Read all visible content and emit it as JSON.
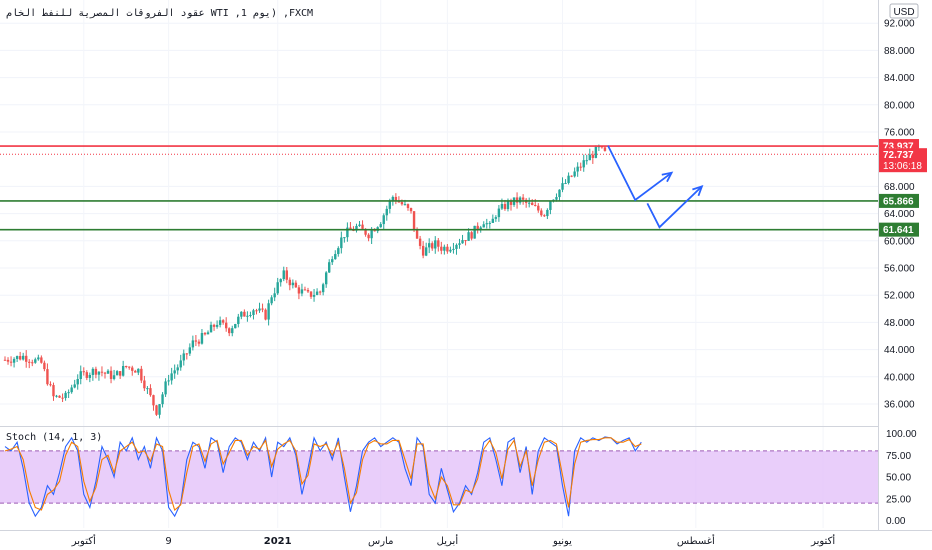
{
  "chart_data": [
    {
      "type": "candlestick",
      "title": "عقود الفروقات المصرية للنفط الخام  WTI  ,يوم  1) ,FXCM",
      "currency": "USD",
      "yticks": [
        "92.000",
        "88.000",
        "84.000",
        "80.000",
        "76.000",
        "68.000",
        "64.000",
        "60.000",
        "56.000",
        "52.000",
        "48.000",
        "44.000",
        "40.000",
        "36.000"
      ],
      "ylim": [
        33,
        95
      ],
      "xticks": [
        {
          "label": "أكتوبر",
          "t": 13,
          "bold": false
        },
        {
          "label": "9",
          "t": 27,
          "bold": false
        },
        {
          "label": "2021",
          "t": 45,
          "bold": true
        },
        {
          "label": "مارس",
          "t": 62,
          "bold": false
        },
        {
          "label": "أبريل",
          "t": 73,
          "bold": false
        },
        {
          "label": "يونيو",
          "t": 92,
          "bold": false
        },
        {
          "label": "أغسطس",
          "t": 114,
          "bold": false
        },
        {
          "label": "أكتوبر",
          "t": 135,
          "bold": false
        }
      ],
      "price_path": [
        [
          0,
          42.5
        ],
        [
          3,
          43
        ],
        [
          6,
          42
        ],
        [
          8,
          37
        ],
        [
          10,
          37
        ],
        [
          12,
          40
        ],
        [
          15,
          41
        ],
        [
          18,
          40
        ],
        [
          20,
          41.5
        ],
        [
          22,
          41
        ],
        [
          24,
          37
        ],
        [
          25,
          35
        ],
        [
          27,
          40
        ],
        [
          29,
          42
        ],
        [
          31,
          45
        ],
        [
          33,
          46
        ],
        [
          35,
          48
        ],
        [
          37,
          47
        ],
        [
          39,
          49
        ],
        [
          41,
          50
        ],
        [
          43,
          49
        ],
        [
          44,
          52
        ],
        [
          46,
          55
        ],
        [
          48,
          53
        ],
        [
          50,
          52
        ],
        [
          52,
          52.5
        ],
        [
          54,
          58
        ],
        [
          56,
          61
        ],
        [
          58,
          62
        ],
        [
          60,
          61
        ],
        [
          62,
          63
        ],
        [
          64,
          66.5
        ],
        [
          66,
          65
        ],
        [
          67,
          64
        ],
        [
          68,
          60
        ],
        [
          69,
          58.5
        ],
        [
          71,
          59.5
        ],
        [
          72,
          59
        ],
        [
          73,
          59
        ],
        [
          75,
          60
        ],
        [
          77,
          61
        ],
        [
          79,
          63
        ],
        [
          80,
          62
        ],
        [
          81,
          64
        ],
        [
          83,
          65.5
        ],
        [
          85,
          66
        ],
        [
          87,
          65
        ],
        [
          89,
          64
        ],
        [
          90,
          66
        ],
        [
          92,
          68
        ],
        [
          94,
          70
        ],
        [
          96,
          72
        ],
        [
          98,
          73.5
        ],
        [
          99,
          72.8
        ]
      ],
      "levels": [
        {
          "name": "resistance",
          "value": 73.937,
          "label": "73.937",
          "color": "#f23645"
        },
        {
          "name": "support-1",
          "value": 65.866,
          "label": "65.866",
          "color": "#2e7d32"
        },
        {
          "name": "support-2",
          "value": 61.641,
          "label": "61.641",
          "color": "#2e7d32"
        }
      ],
      "last_price": {
        "value": 72.737,
        "label": "72.737",
        "countdown": "13:06:18",
        "color": "#f23645"
      },
      "projections": [
        {
          "points": [
            [
              99.5,
              74
            ],
            [
              104,
              66
            ],
            [
              110,
              70
            ]
          ],
          "color": "#2962ff"
        },
        {
          "points": [
            [
              106,
              65.5
            ],
            [
              108,
              62
            ],
            [
              115,
              68
            ]
          ],
          "color": "#2962ff"
        }
      ]
    },
    {
      "type": "line",
      "title": "Stoch (14, 1, 3)",
      "yticks": [
        "100.00",
        "75.00",
        "50.00",
        "25.00",
        "0.00"
      ],
      "ylim": [
        -5,
        105
      ],
      "band": [
        20,
        80
      ],
      "band_color": "#e1bef8",
      "series": [
        {
          "color": "#2962ff",
          "t0": 0,
          "values": [
            85,
            80,
            90,
            60,
            20,
            5,
            15,
            40,
            30,
            55,
            85,
            95,
            80,
            30,
            15,
            45,
            85,
            70,
            50,
            90,
            80,
            95,
            70,
            85,
            60,
            95,
            80,
            15,
            5,
            20,
            70,
            90,
            85,
            60,
            95,
            90,
            55,
            85,
            95,
            90,
            70,
            90,
            80,
            95,
            50,
            90,
            85,
            95,
            75,
            30,
            60,
            95,
            80,
            90,
            70,
            95,
            50,
            10,
            40,
            80,
            90,
            95,
            85,
            90,
            95,
            90,
            60,
            40,
            95,
            85,
            30,
            20,
            60,
            35,
            10,
            20,
            40,
            30,
            55,
            90,
            95,
            70,
            40,
            90,
            95,
            55,
            85,
            30,
            80,
            95,
            90,
            85,
            40,
            5,
            80,
            95,
            90,
            95,
            92,
            96,
            95,
            88,
            92,
            95,
            80,
            90
          ]
        },
        {
          "color": "#f57c00",
          "t0": 0,
          "values": [
            80,
            82,
            85,
            70,
            35,
            15,
            12,
            30,
            35,
            45,
            75,
            90,
            85,
            45,
            22,
            38,
            70,
            75,
            55,
            80,
            85,
            90,
            78,
            80,
            68,
            88,
            85,
            35,
            12,
            18,
            55,
            85,
            88,
            68,
            88,
            92,
            65,
            78,
            92,
            92,
            75,
            85,
            82,
            92,
            62,
            82,
            88,
            92,
            80,
            42,
            52,
            88,
            85,
            88,
            75,
            90,
            60,
            20,
            32,
            70,
            88,
            92,
            88,
            88,
            92,
            92,
            70,
            48,
            88,
            88,
            42,
            25,
            50,
            40,
            18,
            18,
            35,
            32,
            48,
            82,
            92,
            78,
            48,
            82,
            92,
            62,
            80,
            40,
            70,
            90,
            92,
            88,
            52,
            15,
            65,
            90,
            92,
            93,
            93,
            95,
            95,
            90,
            90,
            93,
            85,
            88
          ]
        }
      ]
    }
  ]
}
